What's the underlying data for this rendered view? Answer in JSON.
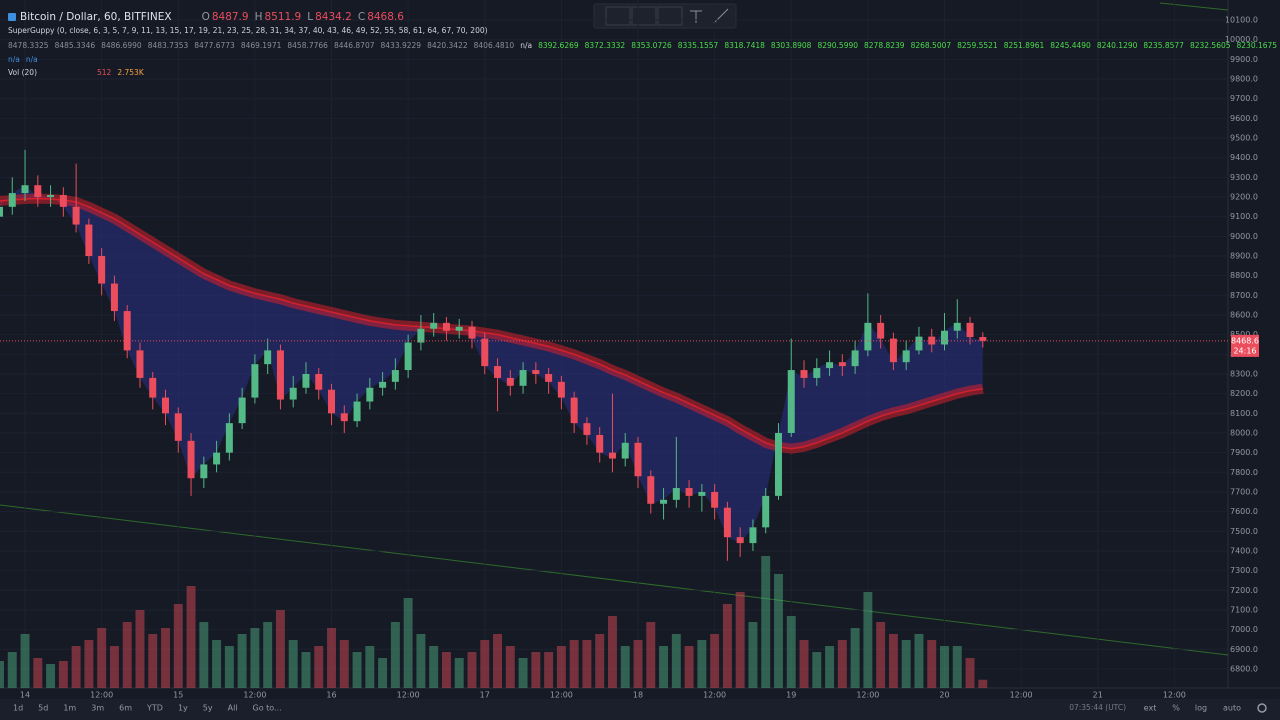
{
  "header": {
    "symbol": "Bitcoin / Dollar, 60, BITFINEX",
    "o": "O",
    "h": "H",
    "l": "L",
    "c": "C",
    "countdown": "24:16"
  },
  "indicator": {
    "name": "SuperGuppy (0, close, 6, 3, 5, 7, 9, 11, 13, 15, 17, 19, 21, 23, 25, 28, 31, 34, 37, 40, 43, 46, 49, 52, 55, 58, 61, 64, 67, 70, 200)",
    "lines": [
      [
        {
          "color": "#8b8f99",
          "items": [
            "8478.3325",
            "8485.3346",
            "8486.6990",
            "8483.7353",
            "8477.6773",
            "8469.1971",
            "8458.7766",
            "8446.8707",
            "8433.9229",
            "8420.3422",
            "8406.4810"
          ]
        },
        {
          "color": "#d1d4dc",
          "items": [
            "n/a"
          ]
        },
        {
          "color": "#4cdc4c",
          "items": [
            "8392.6269",
            "8372.3332",
            "8353.0726",
            "8335.1557",
            "8318.7418",
            "8303.8908",
            "8290.5990",
            "8278.8239",
            "8268.5007",
            "8259.5521",
            "8251.8961",
            "8245.4490",
            "8240.1290",
            "8235.8577",
            "8232.5605",
            "8230.1675"
          ]
        },
        {
          "color": "#d1d4dc",
          "items": [
            "n/a",
            "n/a"
          ]
        },
        {
          "color": "#3d8fe0",
          "items": [
            "n/a",
            "n/a"
          ]
        }
      ],
      [
        {
          "color": "#3d8fe0",
          "items": [
            "n/a",
            "n/a"
          ]
        }
      ]
    ]
  },
  "volume_legend": {
    "name": "Vol (20)",
    "values": [
      "512",
      "2.753K"
    ]
  },
  "toolbar": {
    "ranges": [
      "1d",
      "5d",
      "1m",
      "3m",
      "6m",
      "YTD",
      "1y",
      "5y",
      "All"
    ],
    "goto": "Go to...",
    "clock": "07:35:44 (UTC)",
    "options": [
      "ext",
      "%",
      "log",
      "auto"
    ]
  },
  "chart_data": {
    "type": "candlestick",
    "x": [
      -4,
      -2,
      0,
      2,
      4,
      6,
      8,
      10,
      12,
      14,
      16,
      18,
      20,
      22,
      24,
      26,
      28,
      30,
      32,
      34,
      36,
      38,
      40,
      42,
      44,
      46,
      48,
      50,
      52,
      54,
      56,
      58,
      60,
      62,
      64,
      66,
      68,
      70,
      72,
      74,
      76,
      78,
      80,
      82,
      84,
      86,
      88,
      90,
      92,
      94,
      96,
      98,
      100,
      102,
      104,
      106,
      108,
      110,
      112,
      114,
      116,
      118,
      120,
      122,
      124,
      126,
      128,
      130,
      132,
      134,
      136,
      138,
      140,
      142,
      144,
      146,
      148,
      150
    ],
    "open": [
      9100,
      9150,
      9220,
      9260,
      9200,
      9210,
      9150,
      9060,
      8900,
      8760,
      8620,
      8420,
      8280,
      8180,
      8100,
      7960,
      7770,
      7840,
      7900,
      8050,
      8180,
      8350,
      8420,
      8170,
      8230,
      8300,
      8220,
      8100,
      8060,
      8160,
      8230,
      8260,
      8320,
      8460,
      8530,
      8560,
      8520,
      8540,
      8480,
      8340,
      8280,
      8240,
      8320,
      8300,
      8260,
      8180,
      8050,
      7990,
      7900,
      7870,
      7950,
      7780,
      7640,
      7660,
      7720,
      7680,
      7700,
      7620,
      7470,
      7440,
      7520,
      7680,
      8000,
      8320,
      8280,
      8330,
      8360,
      8340,
      8420,
      8560,
      8480,
      8360,
      8420,
      8490,
      8450,
      8520,
      8560,
      8487.9
    ],
    "high": [
      9200,
      9300,
      9440,
      9310,
      9260,
      9250,
      9370,
      9090,
      8940,
      8800,
      8650,
      8460,
      8310,
      8220,
      8130,
      8000,
      7880,
      7960,
      8100,
      8230,
      8400,
      8480,
      8450,
      8290,
      8360,
      8330,
      8250,
      8140,
      8200,
      8280,
      8310,
      8380,
      8500,
      8600,
      8610,
      8590,
      8580,
      8570,
      8510,
      8380,
      8320,
      8360,
      8360,
      8330,
      8290,
      8210,
      8080,
      8030,
      8200,
      8000,
      7980,
      7810,
      7720,
      7980,
      7760,
      7740,
      7740,
      7650,
      7520,
      7560,
      7720,
      8050,
      8480,
      8370,
      8380,
      8420,
      8400,
      8470,
      8710,
      8600,
      8510,
      8470,
      8540,
      8530,
      8610,
      8680,
      8590,
      8511.9
    ],
    "low": [
      9060,
      9110,
      9180,
      9150,
      9150,
      9100,
      9020,
      8860,
      8700,
      8570,
      8380,
      8230,
      8120,
      8040,
      7900,
      7680,
      7720,
      7800,
      7860,
      8020,
      8150,
      8300,
      8120,
      8130,
      8200,
      8170,
      8040,
      8000,
      8030,
      8120,
      8190,
      8220,
      8280,
      8420,
      8490,
      8470,
      8480,
      8430,
      8300,
      8110,
      8190,
      8200,
      8250,
      8200,
      8120,
      8000,
      7940,
      7850,
      7800,
      7830,
      7720,
      7590,
      7560,
      7620,
      7620,
      7600,
      7560,
      7350,
      7370,
      7400,
      7490,
      7660,
      7980,
      8230,
      8240,
      8290,
      8290,
      8300,
      8390,
      8430,
      8320,
      8320,
      8400,
      8410,
      8420,
      8480,
      8450,
      8434.2
    ],
    "close": [
      9150,
      9220,
      9260,
      9200,
      9210,
      9150,
      9060,
      8900,
      8760,
      8620,
      8420,
      8280,
      8180,
      8100,
      7960,
      7770,
      7840,
      7900,
      8050,
      8180,
      8350,
      8420,
      8170,
      8230,
      8300,
      8220,
      8100,
      8060,
      8160,
      8230,
      8260,
      8320,
      8460,
      8530,
      8560,
      8520,
      8540,
      8480,
      8340,
      8280,
      8240,
      8320,
      8300,
      8260,
      8180,
      8050,
      7990,
      7900,
      7870,
      7950,
      7780,
      7640,
      7660,
      7720,
      7680,
      7700,
      7620,
      7470,
      7440,
      7520,
      7680,
      8000,
      8320,
      8280,
      8330,
      8360,
      8340,
      8420,
      8560,
      8480,
      8360,
      8420,
      8490,
      8450,
      8520,
      8560,
      8487.9,
      8468.6
    ],
    "ema_slow": [
      9180,
      9185,
      9190,
      9192,
      9190,
      9185,
      9175,
      9150,
      9120,
      9090,
      9050,
      9010,
      8970,
      8930,
      8890,
      8850,
      8810,
      8780,
      8750,
      8730,
      8710,
      8695,
      8680,
      8660,
      8645,
      8630,
      8615,
      8600,
      8585,
      8570,
      8560,
      8550,
      8545,
      8540,
      8535,
      8530,
      8525,
      8520,
      8510,
      8500,
      8485,
      8470,
      8455,
      8440,
      8420,
      8400,
      8375,
      8350,
      8320,
      8295,
      8265,
      8235,
      8205,
      8180,
      8150,
      8120,
      8090,
      8060,
      8020,
      7985,
      7950,
      7930,
      7920,
      7930,
      7950,
      7975,
      8000,
      8030,
      8060,
      8085,
      8105,
      8120,
      8140,
      8160,
      8180,
      8200,
      8215,
      8225
    ],
    "volume": {
      "values": [
        9000,
        12000,
        18000,
        10000,
        8000,
        9000,
        14000,
        16000,
        20000,
        14000,
        22000,
        26000,
        18000,
        20000,
        28000,
        34000,
        22000,
        16000,
        14000,
        18000,
        20000,
        22000,
        26000,
        16000,
        12000,
        14000,
        20000,
        16000,
        12000,
        14000,
        10000,
        22000,
        30000,
        18000,
        14000,
        12000,
        10000,
        12000,
        16000,
        18000,
        14000,
        10000,
        12000,
        12000,
        14000,
        16000,
        16000,
        18000,
        24000,
        14000,
        16000,
        22000,
        14000,
        18000,
        14000,
        16000,
        18000,
        28000,
        32000,
        22000,
        44000,
        38000,
        24000,
        16000,
        12000,
        14000,
        16000,
        20000,
        32000,
        22000,
        18000,
        16000,
        18000,
        16000,
        14000,
        14000,
        10000,
        2753
      ],
      "ylim": [
        0,
        50000
      ]
    },
    "xlim": [
      -3.92,
      188.4
    ],
    "ylim": [
      6703,
      10202
    ],
    "xticks": [
      {
        "value": 0,
        "label": "14"
      },
      {
        "value": 12,
        "label": "12:00"
      },
      {
        "value": 24,
        "label": "15"
      },
      {
        "value": 36,
        "label": "12:00"
      },
      {
        "value": 48,
        "label": "16"
      },
      {
        "value": 60,
        "label": "12:00"
      },
      {
        "value": 72,
        "label": "17"
      },
      {
        "value": 84,
        "label": "12:00"
      },
      {
        "value": 96,
        "label": "18"
      },
      {
        "value": 108,
        "label": "12:00"
      },
      {
        "value": 120,
        "label": "19"
      },
      {
        "value": 132,
        "label": "12:00"
      },
      {
        "value": 144,
        "label": "20"
      },
      {
        "value": 156,
        "label": "12:00"
      },
      {
        "value": 168,
        "label": "21"
      },
      {
        "value": 180,
        "label": "12:00"
      }
    ],
    "yticks": [
      {
        "value": 6800,
        "label": "6800.0"
      },
      {
        "value": 6900,
        "label": "6900.0"
      },
      {
        "value": 7000,
        "label": "7000.0"
      },
      {
        "value": 7100,
        "label": "7100.0"
      },
      {
        "value": 7200,
        "label": "7200.0"
      },
      {
        "value": 7300,
        "label": "7300.0"
      },
      {
        "value": 7400,
        "label": "7400.0"
      },
      {
        "value": 7500,
        "label": "7500.0"
      },
      {
        "value": 7600,
        "label": "7600.0"
      },
      {
        "value": 7700,
        "label": "7700.0"
      },
      {
        "value": 7800,
        "label": "7800.0"
      },
      {
        "value": 7900,
        "label": "7900.0"
      },
      {
        "value": 8000,
        "label": "8000.0"
      },
      {
        "value": 8100,
        "label": "8100.0"
      },
      {
        "value": 8200,
        "label": "8200.0"
      },
      {
        "value": 8300,
        "label": "8300.0"
      },
      {
        "value": 8400,
        "label": "8400.0"
      },
      {
        "value": 8500,
        "label": "8500.0"
      },
      {
        "value": 8600,
        "label": "8600.0"
      },
      {
        "value": 8700,
        "label": "8700.0"
      },
      {
        "value": 8800,
        "label": "8800.0"
      },
      {
        "value": 8900,
        "label": "8900.0"
      },
      {
        "value": 9000,
        "label": "9000.0"
      },
      {
        "value": 9100,
        "label": "9100.0"
      },
      {
        "value": 9200,
        "label": "9200.0"
      },
      {
        "value": 9300,
        "label": "9300.0"
      },
      {
        "value": 9400,
        "label": "9400.0"
      },
      {
        "value": 9500,
        "label": "9500.0"
      },
      {
        "value": 9600,
        "label": "9600.0"
      },
      {
        "value": 9700,
        "label": "9700.0"
      },
      {
        "value": 9800,
        "label": "9800.0"
      },
      {
        "value": 9900,
        "label": "9900.0"
      },
      {
        "value": 10000,
        "label": "10000.0"
      },
      {
        "value": 10100,
        "label": "10100.0"
      }
    ],
    "grid": true,
    "up_color": "#53b987",
    "down_color": "#eb4d5c",
    "ema_color": "#d3202c"
  }
}
